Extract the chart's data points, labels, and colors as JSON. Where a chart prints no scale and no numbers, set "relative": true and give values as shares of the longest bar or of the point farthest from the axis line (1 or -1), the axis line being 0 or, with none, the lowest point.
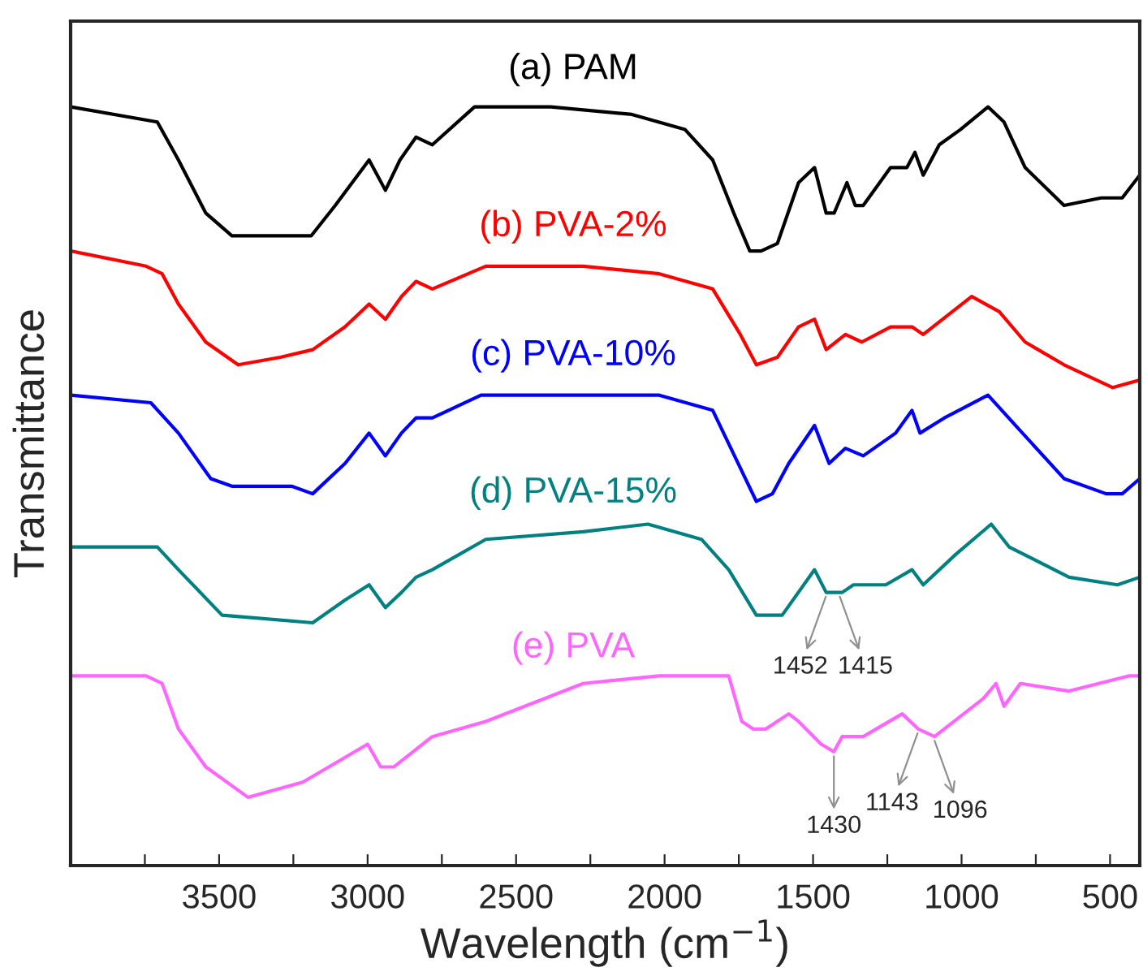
{
  "chart_data": {
    "type": "line",
    "relative": true,
    "xlabel": "Wavelength (cm$^{−1}$)",
    "ylabel": "Transmittance",
    "xlim": [
      4000,
      400
    ],
    "xticks": [
      {
        "value": 3750,
        "label": null
      },
      3500,
      {
        "value": 3250,
        "label": null
      },
      3000,
      {
        "value": 2750,
        "label": null
      },
      2500,
      {
        "value": 2250,
        "label": null
      },
      2000,
      {
        "value": 1750,
        "label": null
      },
      1500,
      {
        "value": 1250,
        "label": null
      },
      1000,
      {
        "value": 750,
        "label": null
      },
      500
    ],
    "grid": false,
    "series": [
      {
        "name": "(a) PAM",
        "color": "#000000",
        "x": [
          4000,
          3708,
          3637,
          3545,
          3457,
          3327,
          3245,
          3190,
          3109,
          2995,
          2940,
          2891,
          2837,
          2782,
          2640,
          2420,
          2383,
          2110,
          1931,
          1838,
          1767,
          1713,
          1675,
          1620,
          1549,
          1495,
          1456,
          1429,
          1386,
          1358,
          1331,
          1239,
          1184,
          1157,
          1129,
          1075,
          1004,
          911,
          857,
          786,
          655,
          530,
          459,
          400
        ],
        "values": [
          1.0,
          0.98,
          0.93,
          0.86,
          0.83,
          0.83,
          0.83,
          0.83,
          0.87,
          0.93,
          0.89,
          0.93,
          0.96,
          0.95,
          1.0,
          1.0,
          1.0,
          0.99,
          0.97,
          0.93,
          0.86,
          0.81,
          0.81,
          0.82,
          0.9,
          0.92,
          0.86,
          0.86,
          0.9,
          0.87,
          0.87,
          0.92,
          0.92,
          0.94,
          0.91,
          0.95,
          0.97,
          1.0,
          0.98,
          0.92,
          0.87,
          0.88,
          0.88,
          0.91
        ]
      },
      {
        "name": "(b) PVA-2%",
        "color": "#ff0000",
        "x": [
          4000,
          3746,
          3692,
          3637,
          3545,
          3436,
          3294,
          3185,
          3076,
          2995,
          2940,
          2886,
          2837,
          2782,
          2602,
          2274,
          2018,
          1838,
          1745,
          1691,
          1620,
          1549,
          1495,
          1456,
          1391,
          1336,
          1239,
          1167,
          1129,
          966,
          873,
          786,
          655,
          491,
          400
        ],
        "values": [
          0.81,
          0.79,
          0.78,
          0.74,
          0.69,
          0.66,
          0.67,
          0.68,
          0.71,
          0.74,
          0.72,
          0.75,
          0.77,
          0.76,
          0.79,
          0.79,
          0.78,
          0.76,
          0.7,
          0.66,
          0.67,
          0.71,
          0.72,
          0.68,
          0.7,
          0.69,
          0.71,
          0.71,
          0.7,
          0.75,
          0.73,
          0.69,
          0.66,
          0.63,
          0.64
        ]
      },
      {
        "name": "(c) PVA-10%",
        "color": "#0000ff",
        "x": [
          4000,
          3730,
          3637,
          3528,
          3457,
          3256,
          3185,
          3076,
          2995,
          2940,
          2886,
          2837,
          2782,
          2618,
          2274,
          2018,
          1838,
          1740,
          1691,
          1637,
          1582,
          1495,
          1446,
          1391,
          1331,
          1222,
          1167,
          1140,
          1058,
          911,
          818,
          655,
          513,
          459,
          400
        ],
        "values": [
          0.62,
          0.61,
          0.57,
          0.51,
          0.5,
          0.5,
          0.49,
          0.53,
          0.57,
          0.54,
          0.57,
          0.59,
          0.59,
          0.62,
          0.62,
          0.62,
          0.6,
          0.52,
          0.48,
          0.49,
          0.53,
          0.58,
          0.53,
          0.55,
          0.54,
          0.57,
          0.6,
          0.57,
          0.59,
          0.62,
          0.58,
          0.51,
          0.49,
          0.49,
          0.51
        ]
      },
      {
        "name": "(d) PVA-15%",
        "color": "#008080",
        "x": [
          4000,
          3708,
          3637,
          3490,
          3185,
          3076,
          2995,
          2940,
          2886,
          2837,
          2782,
          2602,
          2274,
          2056,
          1876,
          1784,
          1691,
          1604,
          1495,
          1456,
          1402,
          1364,
          1255,
          1167,
          1129,
          1020,
          900,
          840,
          638,
          475,
          400
        ],
        "values": [
          0.42,
          0.42,
          0.39,
          0.33,
          0.32,
          0.35,
          0.37,
          0.34,
          0.36,
          0.38,
          0.39,
          0.43,
          0.44,
          0.45,
          0.43,
          0.39,
          0.33,
          0.33,
          0.39,
          0.36,
          0.36,
          0.37,
          0.37,
          0.39,
          0.37,
          0.41,
          0.45,
          0.42,
          0.38,
          0.37,
          0.38
        ]
      },
      {
        "name": "(e) PVA",
        "color": "#ff66ff",
        "x": [
          4000,
          3746,
          3692,
          3637,
          3545,
          3403,
          3218,
          3000,
          2956,
          2912,
          2782,
          2602,
          2274,
          2018,
          1784,
          1740,
          1702,
          1659,
          1582,
          1549,
          1473,
          1430,
          1402,
          1331,
          1200,
          1146,
          1091,
          927,
          884,
          857,
          802,
          638,
          437,
          400
        ],
        "values": [
          0.25,
          0.25,
          0.24,
          0.18,
          0.13,
          0.09,
          0.11,
          0.16,
          0.13,
          0.13,
          0.17,
          0.19,
          0.24,
          0.25,
          0.25,
          0.19,
          0.18,
          0.18,
          0.2,
          0.19,
          0.16,
          0.15,
          0.17,
          0.17,
          0.2,
          0.18,
          0.17,
          0.22,
          0.24,
          0.21,
          0.24,
          0.23,
          0.25,
          0.25
        ]
      }
    ],
    "annotations": [
      {
        "text": "1452",
        "x": 1452,
        "y": 0.36
      },
      {
        "text": "1415",
        "x": 1415,
        "y": 0.36
      },
      {
        "text": "1430",
        "x": 1430,
        "y": 0.15
      },
      {
        "text": "1143",
        "x": 1143,
        "y": 0.18
      },
      {
        "text": "1096",
        "x": 1096,
        "y": 0.17
      }
    ]
  }
}
